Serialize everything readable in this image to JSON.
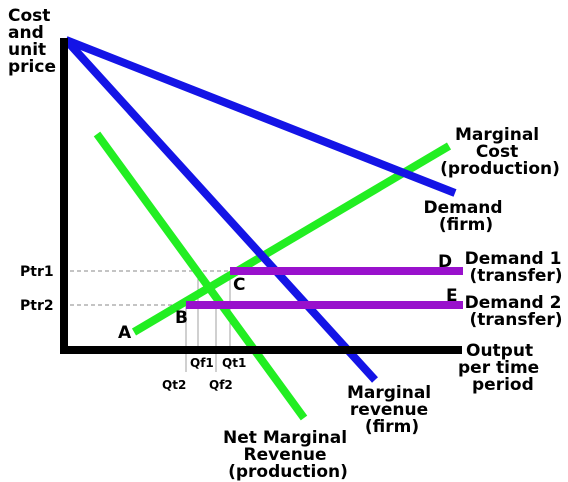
{
  "colors": {
    "axis": "#000000",
    "demand_firm": "#1414e6",
    "marginal_revenue_firm": "#1414e6",
    "marginal_cost": "#22ee22",
    "net_marginal_revenue": "#22ee22",
    "transfer_demand": "#9911cc",
    "guide_dashed": "#8a8a8a",
    "guide_solid": "#a0a0a0"
  },
  "axes": {
    "y_label": [
      "Cost",
      "and",
      "unit",
      "price"
    ],
    "x_label": [
      "Output",
      "per time",
      "period"
    ]
  },
  "curves": {
    "demand_firm": [
      "Demand",
      "(firm)"
    ],
    "marginal_revenue_firm": [
      "Marginal",
      "revenue",
      "(firm)"
    ],
    "marginal_cost": [
      "Marginal",
      "Cost",
      "(production)"
    ],
    "net_marginal_revenue": [
      "Net Marginal",
      "Revenue",
      "(production)"
    ],
    "demand_transfer_1": [
      "Demand 1",
      "(transfer)"
    ],
    "demand_transfer_2": [
      "Demand 2",
      "(transfer)"
    ]
  },
  "prices": {
    "ptr1": "Ptr1",
    "ptr2": "Ptr2"
  },
  "quantities": {
    "qt2": "Qt2",
    "qf1": "Qf1",
    "qf2": "Qf2",
    "qt1": "Qt1"
  },
  "points": {
    "a": "A",
    "b": "B",
    "c": "C",
    "d": "D",
    "e": "E"
  }
}
